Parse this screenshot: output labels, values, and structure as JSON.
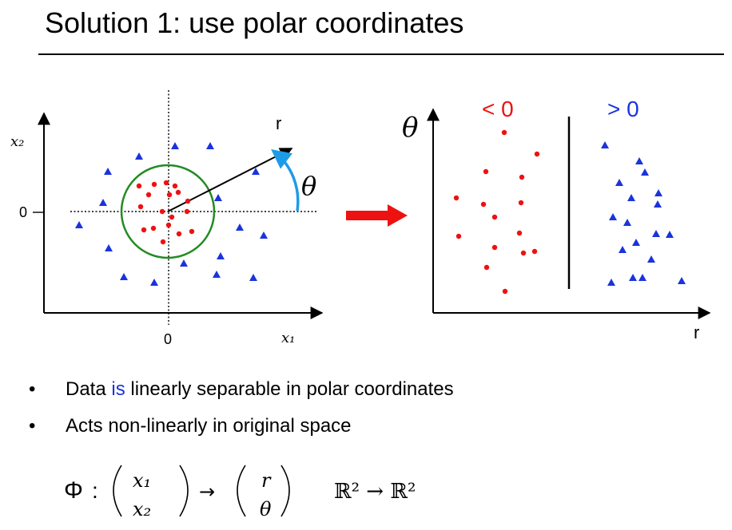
{
  "slide": {
    "title": "Solution 1: use polar coordinates"
  },
  "left_plot": {
    "x_axis_label": "x₁",
    "y_axis_label": "x₂",
    "x_origin_tick": "0",
    "y_origin_tick": "0",
    "vector_label": "r",
    "angle_label": "θ",
    "circle_color": "#228b22",
    "angle_arc_color": "#1e9be6"
  },
  "transform_arrow": {
    "color": "#ee1111"
  },
  "right_plot": {
    "x_axis_label": "r",
    "y_axis_label": "θ",
    "region_left_label": "< 0",
    "region_right_label": "> 0",
    "region_left_color": "#ee1111",
    "region_right_color": "#1a33dd"
  },
  "bullets": [
    {
      "before": "Data ",
      "highlight": "is",
      "after": " linearly separable in polar coordinates"
    },
    {
      "text": "Acts non-linearly in original space"
    }
  ],
  "formula": {
    "phi": "Φ",
    "colon": ":",
    "input_top": "x₁",
    "input_bottom": "x₂",
    "maps_to": "→",
    "output_top": "r",
    "output_bottom": "θ",
    "space_mapping": "ℝ² → ℝ²"
  },
  "colors": {
    "class_a": "#ee1111",
    "class_b": "#1a33dd"
  }
}
